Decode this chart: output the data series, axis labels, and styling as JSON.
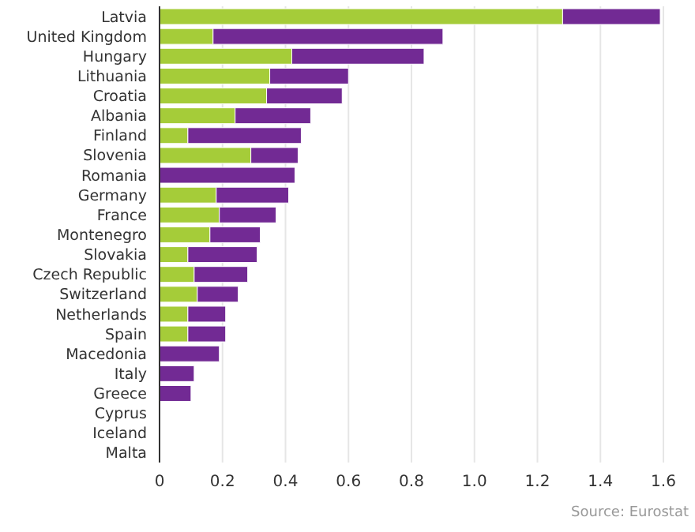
{
  "chart_data": {
    "type": "bar",
    "orientation": "horizontal",
    "stacked": true,
    "categories": [
      "Latvia",
      "United Kingdom",
      "Hungary",
      "Lithuania",
      "Croatia",
      "Albania",
      "Finland",
      "Slovenia",
      "Romania",
      "Germany",
      "France",
      "Montenegro",
      "Slovakia",
      "Czech Republic",
      "Switzerland",
      "Netherlands",
      "Spain",
      "Macedonia",
      "Italy",
      "Greece",
      "Cyprus",
      "Iceland",
      "Malta"
    ],
    "series": [
      {
        "color": "#a5cc39",
        "values": [
          1.28,
          0.17,
          0.42,
          0.35,
          0.34,
          0.24,
          0.09,
          0.29,
          0,
          0.18,
          0.19,
          0.16,
          0.09,
          0.11,
          0.12,
          0.09,
          0.09,
          0,
          0,
          0,
          0,
          0,
          0
        ]
      },
      {
        "color": "#722a94",
        "values": [
          0.31,
          0.73,
          0.42,
          0.25,
          0.24,
          0.24,
          0.36,
          0.15,
          0.43,
          0.23,
          0.18,
          0.16,
          0.22,
          0.17,
          0.13,
          0.12,
          0.12,
          0.19,
          0.11,
          0.1,
          0,
          0,
          0
        ]
      }
    ],
    "xlim": [
      0,
      1.6
    ],
    "xticks": [
      0,
      0.2,
      0.4,
      0.6,
      0.8,
      {
        "value": 1,
        "label": "1.0"
      },
      1.2,
      1.4,
      1.6
    ],
    "grid": "x",
    "legend": false,
    "annotations": [
      "Source: Eurostat"
    ]
  }
}
